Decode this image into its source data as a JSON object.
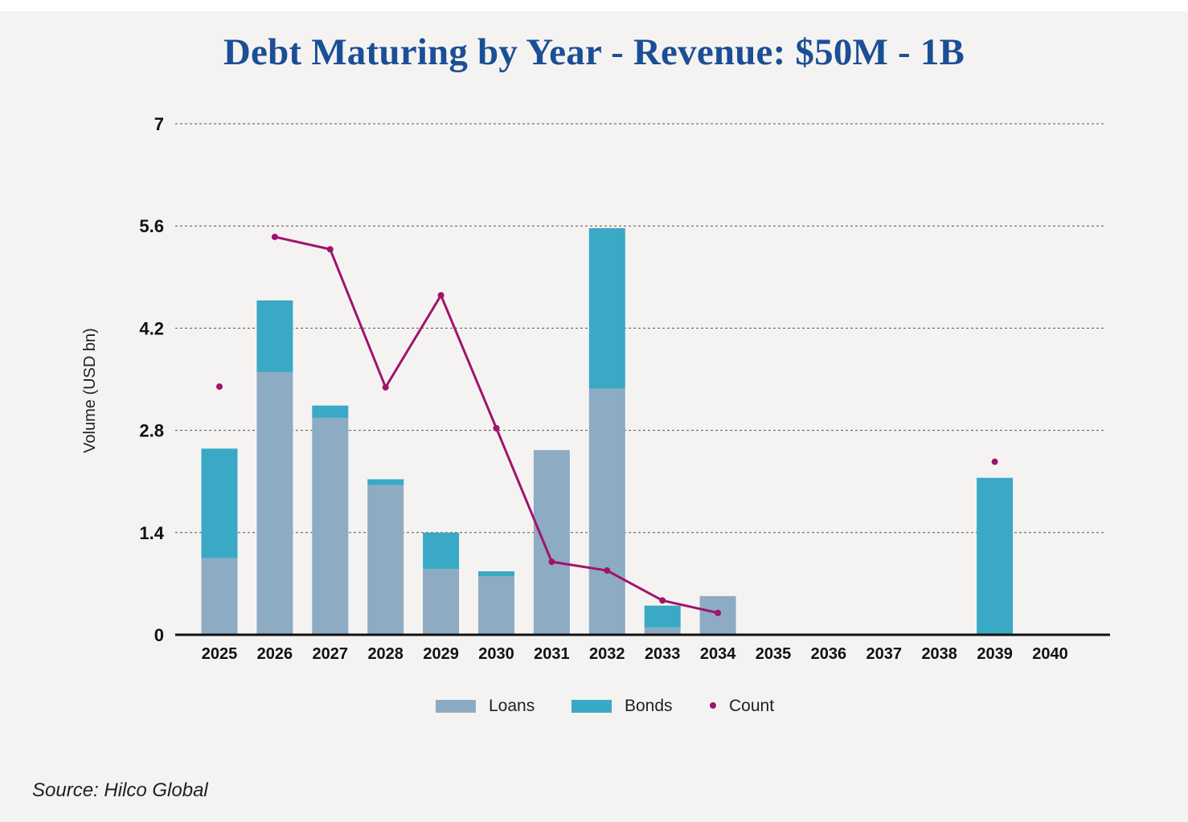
{
  "title": "Debt Maturing by Year - Revenue: $50M - 1B",
  "source": "Source: Hilco Global",
  "colors": {
    "loans": "#8eabc4",
    "bonds": "#3aa9c6",
    "count": "#a0136e",
    "title": "#1a4f96"
  },
  "chart_data": {
    "type": "bar",
    "stacked": true,
    "title": "Debt Maturing by Year - Revenue: $50M - 1B",
    "xlabel": "",
    "ylabel": "Volume (USD bn)",
    "ylim": [
      0,
      7
    ],
    "yticks": [
      "7",
      "5.6",
      "4.2",
      "2.8",
      "1.4",
      "0"
    ],
    "grid": true,
    "legend_position": "bottom-center",
    "categories": [
      "2025",
      "2026",
      "2027",
      "2028",
      "2029",
      "2030",
      "2031",
      "2032",
      "2033",
      "2034",
      "2035",
      "2036",
      "2037",
      "2038",
      "2039",
      "2040"
    ],
    "series": [
      {
        "name": "Loans",
        "kind": "bar",
        "values": [
          1.05,
          3.6,
          2.97,
          2.05,
          0.9,
          0.8,
          2.53,
          3.37,
          0.1,
          0.53,
          0,
          0,
          0,
          0,
          0,
          0
        ]
      },
      {
        "name": "Bonds",
        "kind": "bar",
        "values": [
          1.5,
          0.98,
          0.17,
          0.08,
          0.5,
          0.07,
          0,
          2.2,
          0.3,
          0,
          0,
          0,
          0,
          0,
          2.15,
          0
        ]
      },
      {
        "name": "Count",
        "kind": "line-dots",
        "values": [
          3.4,
          5.45,
          5.28,
          3.39,
          4.65,
          2.83,
          1.0,
          0.88,
          0.47,
          0.3,
          null,
          null,
          null,
          null,
          2.37,
          null
        ]
      }
    ]
  }
}
